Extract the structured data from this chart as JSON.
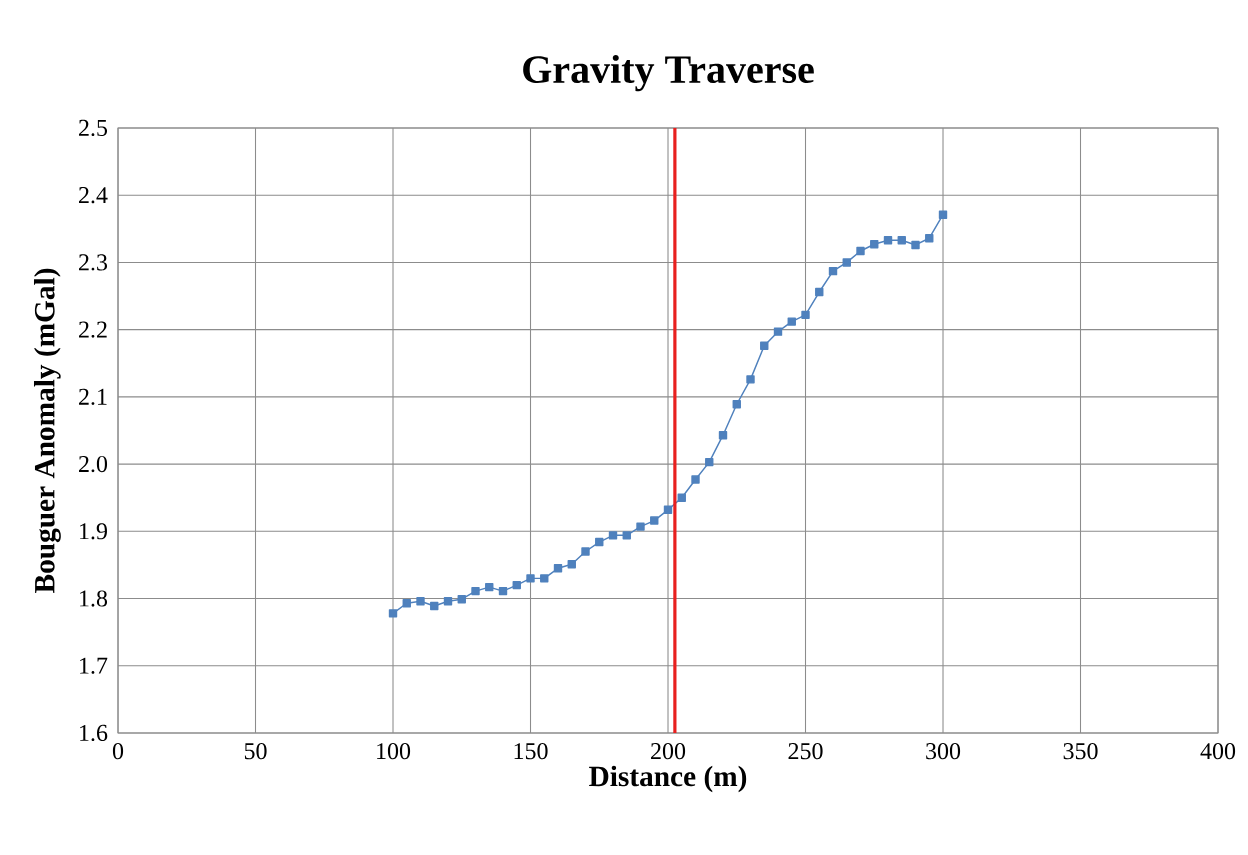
{
  "chart_data": {
    "type": "line",
    "title": "Gravity Traverse",
    "xlabel": "Distance (m)",
    "ylabel": "Bouguer Anomaly (mGal)",
    "x": [
      100,
      105,
      110,
      115,
      120,
      125,
      130,
      135,
      140,
      145,
      150,
      155,
      160,
      165,
      170,
      175,
      180,
      185,
      190,
      195,
      200,
      205,
      210,
      215,
      220,
      225,
      230,
      235,
      240,
      245,
      250,
      255,
      260,
      265,
      270,
      275,
      280,
      285,
      290,
      295,
      300
    ],
    "series": [
      {
        "color": "#4f81bd",
        "values": [
          1.778,
          1.793,
          1.796,
          1.789,
          1.796,
          1.799,
          1.811,
          1.817,
          1.811,
          1.82,
          1.83,
          1.83,
          1.845,
          1.851,
          1.87,
          1.884,
          1.894,
          1.894,
          1.907,
          1.916,
          1.932,
          1.95,
          1.977,
          2.003,
          2.043,
          2.089,
          2.126,
          2.176,
          2.197,
          2.212,
          2.222,
          2.256,
          2.287,
          2.3,
          2.317,
          2.327,
          2.333,
          2.333,
          2.326,
          2.336,
          2.371
        ]
      }
    ],
    "xlim": [
      0,
      400
    ],
    "xticks": [
      0,
      50,
      100,
      150,
      200,
      250,
      300,
      350,
      400
    ],
    "ylim": [
      1.6,
      2.5
    ],
    "yticks": [
      1.6,
      1.7,
      1.8,
      1.9,
      {
        "value": 2.0,
        "label": "2.0"
      },
      2.1,
      2.2,
      2.3,
      2.4,
      2.5
    ],
    "ref_lines": [
      {
        "axis": "x",
        "value": 202.5,
        "color": "#e8201f"
      }
    ],
    "grid": true,
    "marker": "square",
    "line_style": "solid"
  }
}
